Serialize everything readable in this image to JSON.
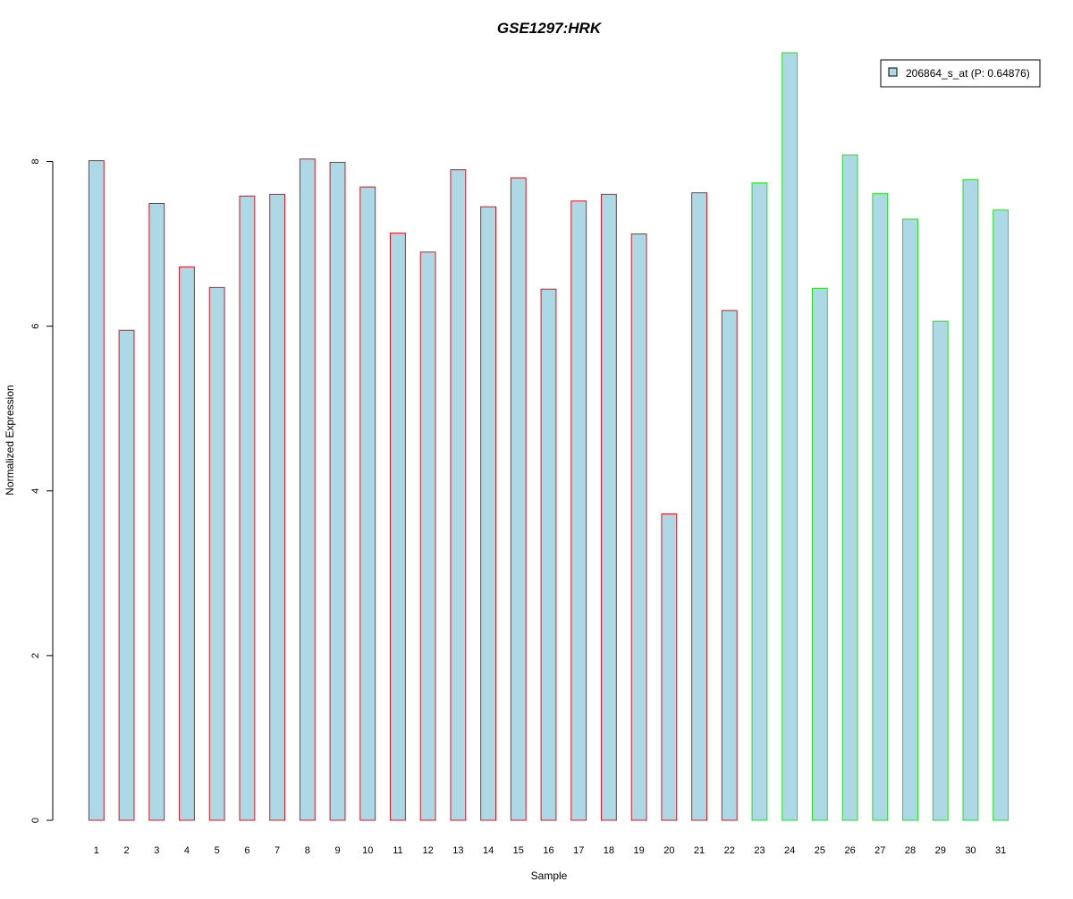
{
  "chart_data": {
    "type": "bar",
    "title": "GSE1297:HRK",
    "xlabel": "Sample",
    "ylabel": "Normalized Expression",
    "categories": [
      "1",
      "2",
      "3",
      "4",
      "5",
      "6",
      "7",
      "8",
      "9",
      "10",
      "11",
      "12",
      "13",
      "14",
      "15",
      "16",
      "17",
      "18",
      "19",
      "20",
      "21",
      "22",
      "23",
      "24",
      "25",
      "26",
      "27",
      "28",
      "29",
      "30",
      "31"
    ],
    "values": [
      8.01,
      5.95,
      7.49,
      6.72,
      6.47,
      7.58,
      7.6,
      8.03,
      7.99,
      7.69,
      7.13,
      6.9,
      7.9,
      7.45,
      7.8,
      6.45,
      7.52,
      7.6,
      7.12,
      3.72,
      7.62,
      6.19,
      7.74,
      9.32,
      6.46,
      8.08,
      7.61,
      7.3,
      6.06,
      7.78,
      7.41
    ],
    "group_edge_colors": [
      "#e0151b",
      "#e0151b",
      "#e0151b",
      "#e0151b",
      "#e0151b",
      "#e0151b",
      "#e0151b",
      "#e0151b",
      "#e0151b",
      "#e0151b",
      "#e0151b",
      "#e0151b",
      "#e0151b",
      "#e0151b",
      "#e0151b",
      "#e0151b",
      "#e0151b",
      "#e0151b",
      "#e0151b",
      "#e0151b",
      "#e0151b",
      "#e0151b",
      "#21e021",
      "#21e021",
      "#21e021",
      "#21e021",
      "#21e021",
      "#21e021",
      "#21e021",
      "#21e021",
      "#21e021"
    ],
    "bar_fill": "#add8e6",
    "title_color": "#0000cc",
    "ylim": [
      0,
      9.32
    ],
    "y_ticks": [
      0,
      2,
      4,
      6,
      8
    ],
    "y_tick_labels": [
      "0",
      "2",
      "4",
      "6",
      "8"
    ],
    "grid": false,
    "legend": {
      "placement": "top-right",
      "entries": [
        "206864_s_at (P: 0.64876)"
      ]
    }
  }
}
